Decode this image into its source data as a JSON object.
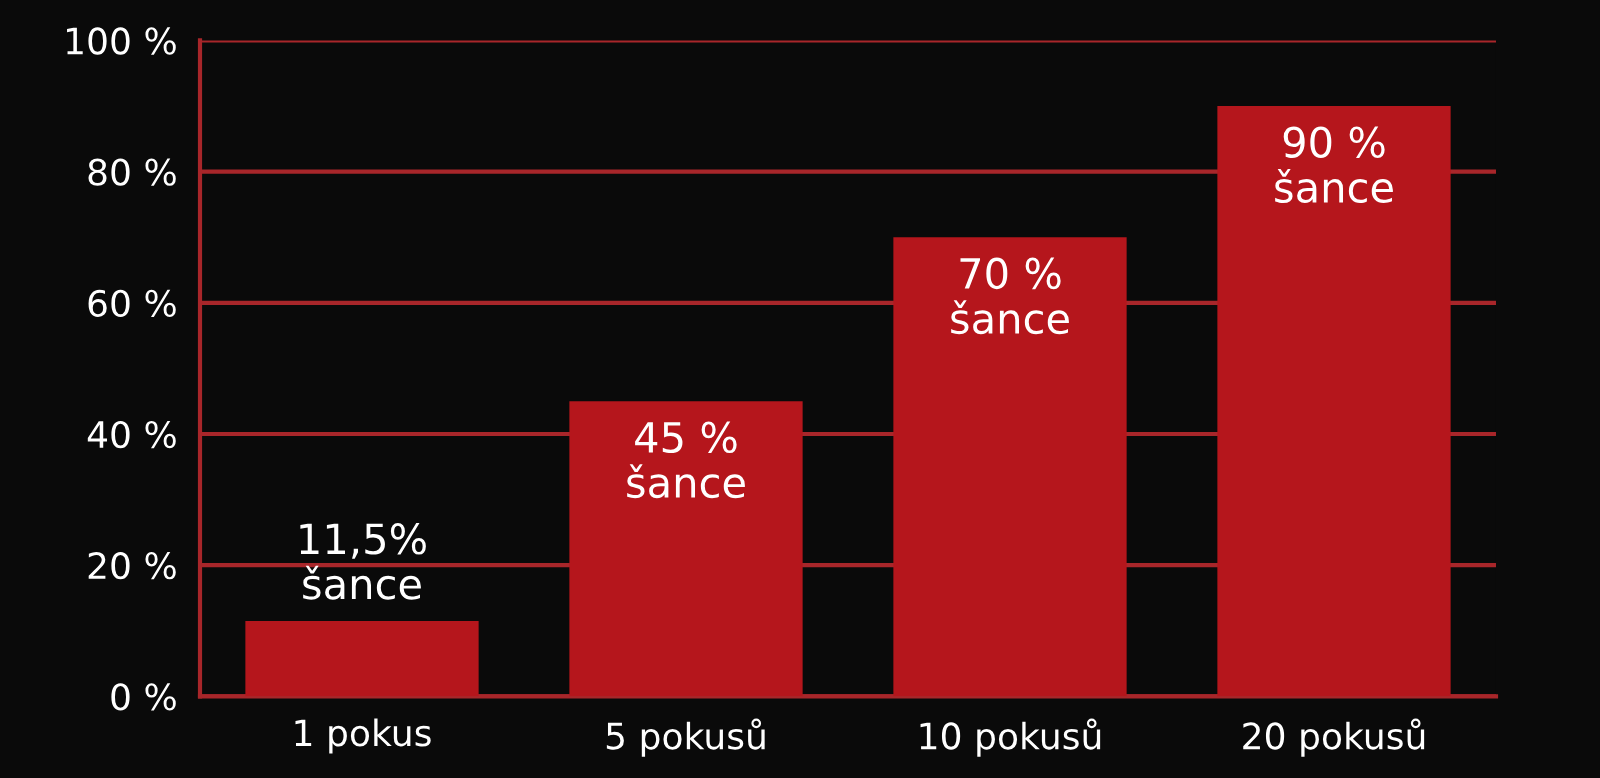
{
  "chart_data": {
    "type": "bar",
    "categories": [
      "1 pokus",
      "5 pokusů",
      "10 pokusů",
      "20 pokusů"
    ],
    "values": [
      11.5,
      45,
      70,
      90
    ],
    "value_labels": [
      "11,5%\nšance",
      "45 %\nšance",
      "70 %\nšance",
      "90 %\nšance"
    ],
    "color": "#b5161c",
    "ylim": [
      0,
      100
    ],
    "yticks": [
      {
        "value": 0,
        "label": "0 %"
      },
      {
        "value": 20,
        "label": "20 %"
      },
      {
        "value": 40,
        "label": "40 %"
      },
      {
        "value": 60,
        "label": "60 %"
      },
      {
        "value": 80,
        "label": "80 %"
      },
      {
        "value": 100,
        "label": "100 %"
      }
    ],
    "grid": "y"
  }
}
